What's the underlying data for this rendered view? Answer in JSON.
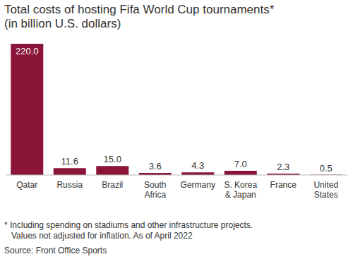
{
  "chart_data": {
    "type": "bar",
    "title": "Total costs of hosting Fifa World Cup tournaments*",
    "subtitle": "(in billion U.S. dollars)",
    "categories": [
      "Qatar",
      "Russia",
      "Brazil",
      "South Africa",
      "Germany",
      "S. Korea & Japan",
      "France",
      "United States"
    ],
    "values": [
      220,
      11.6,
      15,
      3.6,
      4.3,
      7,
      2.3,
      0.5
    ],
    "value_labels": [
      "220.0",
      "11.6",
      "15.0",
      "3.6",
      "4.3",
      "7.0",
      "2.3",
      "0.5"
    ],
    "color": "#8a1538",
    "ylim": [
      0,
      220
    ],
    "data_labels": true,
    "tick_labels": "x",
    "grid": false,
    "notes": [
      "* Including spending on stadiums and other infrastructure projects.",
      "Values not adjusted for inflation. As of April 2022"
    ],
    "source": "Source: Front Office Sports"
  }
}
